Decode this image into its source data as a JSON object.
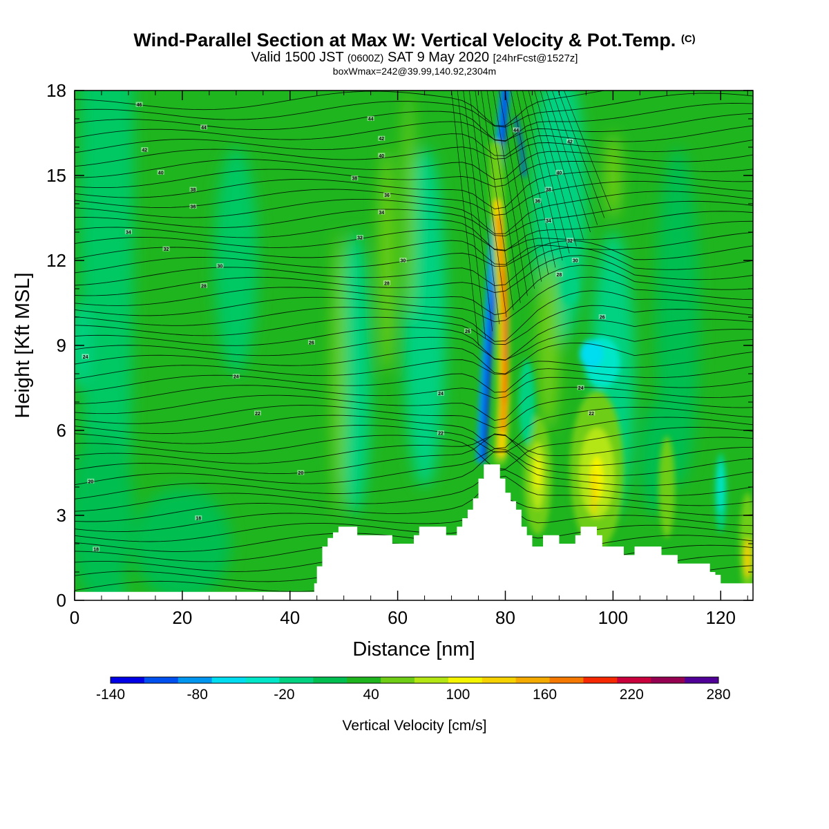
{
  "title": {
    "main": "Wind-Parallel Section at Max W: Vertical Velocity & Pot.Temp.",
    "copyright": "(C)",
    "valid_prefix": "Valid 1500 JST",
    "valid_utc": "(0600Z)",
    "valid_date": "SAT 9 May 2020",
    "forecast": "[24hrFcst@1527z]",
    "boxline": "boxWmax=242@39.99,140.92,2304m"
  },
  "colors": {
    "terrain": "#ffffff",
    "contour": "#000000",
    "background_field": "#1fb51f",
    "palette": [
      "#0000e6",
      "#0050f0",
      "#0096f0",
      "#00dcf0",
      "#00e6c8",
      "#00d282",
      "#00be50",
      "#1eb41e",
      "#6ecd14",
      "#b4e614",
      "#f5f500",
      "#f5d200",
      "#f5aa00",
      "#f57800",
      "#f52800",
      "#c8003c",
      "#960050",
      "#500096"
    ]
  },
  "chart_data": {
    "type": "contour",
    "xlabel": "Distance [nm]",
    "ylabel": "Height [Kft MSL]",
    "xlim": [
      0,
      126
    ],
    "ylim": [
      0,
      18
    ],
    "xticks": [
      0,
      20,
      40,
      60,
      80,
      100,
      120
    ],
    "yticks": [
      0,
      3,
      6,
      9,
      12,
      15,
      18
    ],
    "colorbar": {
      "label": "Vertical Velocity [cm/s]",
      "levels": [
        -140,
        -120,
        -100,
        -80,
        -60,
        -40,
        -20,
        0,
        20,
        40,
        60,
        80,
        100,
        120,
        140,
        160,
        180,
        200,
        220,
        240,
        260,
        280
      ],
      "tick_labels": [
        "-140",
        "-80",
        "-20",
        "40",
        "100",
        "160",
        "220",
        "280"
      ]
    },
    "terrain_profile": [
      [
        0,
        0.3
      ],
      [
        44,
        0.3
      ],
      [
        44.5,
        0.6
      ],
      [
        45,
        1.2
      ],
      [
        46,
        1.9
      ],
      [
        47,
        2.2
      ],
      [
        48,
        2.4
      ],
      [
        49,
        2.6
      ],
      [
        52,
        2.6
      ],
      [
        52.5,
        2.3
      ],
      [
        58,
        2.3
      ],
      [
        59,
        2.0
      ],
      [
        62,
        2.0
      ],
      [
        63,
        2.3
      ],
      [
        64,
        2.6
      ],
      [
        68,
        2.6
      ],
      [
        69,
        2.3
      ],
      [
        70,
        2.3
      ],
      [
        71,
        2.6
      ],
      [
        72,
        2.9
      ],
      [
        73,
        3.2
      ],
      [
        74,
        3.6
      ],
      [
        75,
        4.3
      ],
      [
        76,
        4.8
      ],
      [
        78,
        4.8
      ],
      [
        79,
        4.3
      ],
      [
        80,
        3.8
      ],
      [
        81,
        3.5
      ],
      [
        82,
        3.2
      ],
      [
        83,
        2.6
      ],
      [
        84,
        2.3
      ],
      [
        85,
        1.9
      ],
      [
        87,
        2.3
      ],
      [
        89,
        2.3
      ],
      [
        90,
        2.0
      ],
      [
        92,
        2.0
      ],
      [
        93,
        2.3
      ],
      [
        94,
        2.6
      ],
      [
        96,
        2.6
      ],
      [
        97,
        2.3
      ],
      [
        98,
        1.9
      ],
      [
        101,
        1.9
      ],
      [
        102,
        1.6
      ],
      [
        103,
        1.6
      ],
      [
        104,
        1.9
      ],
      [
        108,
        1.9
      ],
      [
        109,
        1.6
      ],
      [
        111,
        1.6
      ],
      [
        112,
        1.3
      ],
      [
        117,
        1.3
      ],
      [
        118,
        1.0
      ],
      [
        119,
        0.9
      ],
      [
        120,
        0.6
      ],
      [
        126,
        0.6
      ]
    ],
    "updraft_max_cm_s": 242,
    "potential_temperature_labels_c": [
      {
        "x": 12,
        "y": 17.5,
        "text": "46"
      },
      {
        "x": 24,
        "y": 16.7,
        "text": "44"
      },
      {
        "x": 13,
        "y": 15.9,
        "text": "42"
      },
      {
        "x": 16,
        "y": 15.1,
        "text": "40"
      },
      {
        "x": 22,
        "y": 14.5,
        "text": "38"
      },
      {
        "x": 22,
        "y": 13.9,
        "text": "36"
      },
      {
        "x": 10,
        "y": 13.0,
        "text": "34"
      },
      {
        "x": 17,
        "y": 12.4,
        "text": "32"
      },
      {
        "x": 27,
        "y": 11.8,
        "text": "30"
      },
      {
        "x": 24,
        "y": 11.1,
        "text": "28"
      },
      {
        "x": 55,
        "y": 17.0,
        "text": "44"
      },
      {
        "x": 57,
        "y": 16.3,
        "text": "42"
      },
      {
        "x": 57,
        "y": 15.7,
        "text": "40"
      },
      {
        "x": 52,
        "y": 14.9,
        "text": "38"
      },
      {
        "x": 58,
        "y": 14.3,
        "text": "36"
      },
      {
        "x": 57,
        "y": 13.7,
        "text": "34"
      },
      {
        "x": 53,
        "y": 12.8,
        "text": "32"
      },
      {
        "x": 61,
        "y": 12.0,
        "text": "30"
      },
      {
        "x": 58,
        "y": 11.2,
        "text": "28"
      },
      {
        "x": 44,
        "y": 9.1,
        "text": "26"
      },
      {
        "x": 2,
        "y": 8.6,
        "text": "24"
      },
      {
        "x": 30,
        "y": 7.9,
        "text": "24"
      },
      {
        "x": 34,
        "y": 6.6,
        "text": "22"
      },
      {
        "x": 42,
        "y": 4.5,
        "text": "20"
      },
      {
        "x": 3,
        "y": 4.2,
        "text": "20"
      },
      {
        "x": 23,
        "y": 2.9,
        "text": "18"
      },
      {
        "x": 4,
        "y": 1.8,
        "text": "18"
      },
      {
        "x": 73,
        "y": 9.5,
        "text": "26"
      },
      {
        "x": 68,
        "y": 7.3,
        "text": "24"
      },
      {
        "x": 68,
        "y": 5.9,
        "text": "22"
      },
      {
        "x": 82,
        "y": 16.6,
        "text": "44"
      },
      {
        "x": 92,
        "y": 16.2,
        "text": "42"
      },
      {
        "x": 90,
        "y": 15.1,
        "text": "40"
      },
      {
        "x": 88,
        "y": 14.5,
        "text": "38"
      },
      {
        "x": 86,
        "y": 14.1,
        "text": "36"
      },
      {
        "x": 88,
        "y": 13.4,
        "text": "34"
      },
      {
        "x": 92,
        "y": 12.7,
        "text": "32"
      },
      {
        "x": 93,
        "y": 12.0,
        "text": "30"
      },
      {
        "x": 90,
        "y": 11.5,
        "text": "28"
      },
      {
        "x": 98,
        "y": 10.0,
        "text": "26"
      },
      {
        "x": 94,
        "y": 7.5,
        "text": "24"
      },
      {
        "x": 96,
        "y": 6.6,
        "text": "22"
      }
    ]
  }
}
